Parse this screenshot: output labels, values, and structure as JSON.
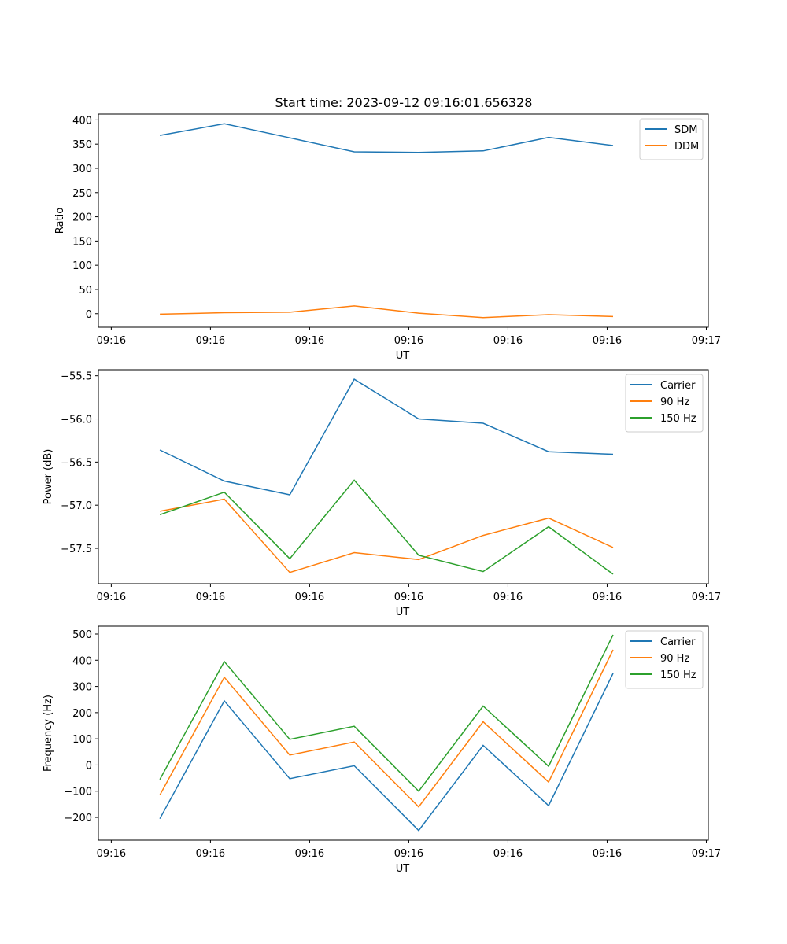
{
  "figure": {
    "title": "Start time: 2023-09-12 09:16:01.656328"
  },
  "colors": {
    "blue": "#1f77b4",
    "orange": "#ff7f0e",
    "green": "#2ca02c"
  },
  "chart_data": [
    {
      "type": "line",
      "title": "Start time: 2023-09-12 09:16:01.656328",
      "xlabel": "UT",
      "ylabel": "Ratio",
      "xtick_labels": [
        "09:16",
        "09:16",
        "09:16",
        "09:16",
        "09:16",
        "09:16",
        "09:17"
      ],
      "xticks": [
        0,
        1,
        2,
        3,
        4,
        5,
        6
      ],
      "xlim": [
        -0.13,
        6.02
      ],
      "x": [
        0.49,
        1.14,
        1.8,
        2.45,
        3.1,
        3.75,
        4.41,
        5.06
      ],
      "ylim": [
        -28,
        412
      ],
      "yticks": [
        0,
        50,
        100,
        150,
        200,
        250,
        300,
        350,
        400
      ],
      "ytick_labels": [
        "0",
        "50",
        "100",
        "150",
        "200",
        "250",
        "300",
        "350",
        "400"
      ],
      "legend": "top-right",
      "grid": false,
      "series": [
        {
          "name": "SDM",
          "color": "#1f77b4",
          "values": [
            368,
            392,
            363,
            334,
            333,
            336,
            364,
            347
          ]
        },
        {
          "name": "DDM",
          "color": "#ff7f0e",
          "values": [
            -1,
            2,
            3,
            16,
            1,
            -8,
            -2,
            -6
          ]
        }
      ]
    },
    {
      "type": "line",
      "xlabel": "UT",
      "ylabel": "Power (dB)",
      "xtick_labels": [
        "09:16",
        "09:16",
        "09:16",
        "09:16",
        "09:16",
        "09:16",
        "09:17"
      ],
      "xticks": [
        0,
        1,
        2,
        3,
        4,
        5,
        6
      ],
      "xlim": [
        -0.13,
        6.02
      ],
      "x": [
        0.49,
        1.14,
        1.8,
        2.45,
        3.1,
        3.75,
        4.41,
        5.06
      ],
      "ylim": [
        -57.91,
        -55.43
      ],
      "yticks": [
        -55.5,
        -56.0,
        -56.5,
        -57.0,
        -57.5
      ],
      "ytick_labels": [
        "−55.5",
        "−56.0",
        "−56.5",
        "−57.0",
        "−57.5"
      ],
      "legend": "top-right",
      "grid": false,
      "series": [
        {
          "name": "Carrier",
          "color": "#1f77b4",
          "values": [
            -56.36,
            -56.72,
            -56.88,
            -55.54,
            -56.0,
            -56.05,
            -56.38,
            -56.41
          ]
        },
        {
          "name": "90 Hz",
          "color": "#ff7f0e",
          "values": [
            -57.07,
            -56.93,
            -57.78,
            -57.55,
            -57.63,
            -57.35,
            -57.15,
            -57.49
          ]
        },
        {
          "name": "150 Hz",
          "color": "#2ca02c",
          "values": [
            -57.11,
            -56.85,
            -57.62,
            -56.71,
            -57.58,
            -57.77,
            -57.25,
            -57.8
          ]
        }
      ]
    },
    {
      "type": "line",
      "xlabel": "UT",
      "ylabel": "Frequency (Hz)",
      "xtick_labels": [
        "09:16",
        "09:16",
        "09:16",
        "09:16",
        "09:16",
        "09:16",
        "09:17"
      ],
      "xticks": [
        0,
        1,
        2,
        3,
        4,
        5,
        6
      ],
      "xlim": [
        -0.13,
        6.02
      ],
      "x": [
        0.49,
        1.14,
        1.8,
        2.45,
        3.1,
        3.75,
        4.41,
        5.06
      ],
      "ylim": [
        -287,
        530
      ],
      "yticks": [
        -200,
        -100,
        0,
        100,
        200,
        300,
        400,
        500
      ],
      "ytick_labels": [
        "−200",
        "−100",
        "0",
        "100",
        "200",
        "300",
        "400",
        "500"
      ],
      "legend": "top-right",
      "grid": false,
      "series": [
        {
          "name": "Carrier",
          "color": "#1f77b4",
          "values": [
            -205,
            245,
            -52,
            -3,
            -250,
            75,
            -155,
            350
          ]
        },
        {
          "name": "90 Hz",
          "color": "#ff7f0e",
          "values": [
            -115,
            335,
            38,
            88,
            -160,
            165,
            -65,
            440
          ]
        },
        {
          "name": "150 Hz",
          "color": "#2ca02c",
          "values": [
            -55,
            395,
            98,
            148,
            -100,
            225,
            -5,
            497
          ]
        }
      ]
    }
  ]
}
